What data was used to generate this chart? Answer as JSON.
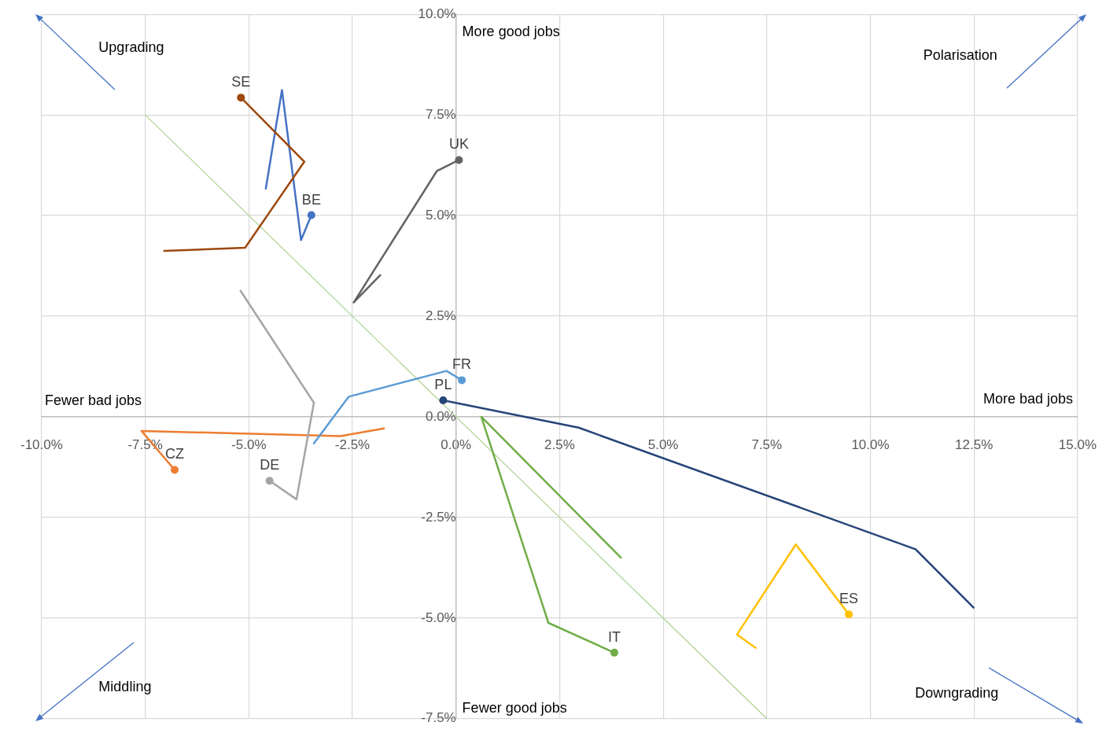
{
  "chart_data": {
    "type": "line",
    "xlim": [
      -10,
      15
    ],
    "ylim": [
      -7.5,
      10
    ],
    "xticks": [
      {
        "value": -10,
        "label": "-10.0%"
      },
      {
        "value": -7.5,
        "label": "-7.5%"
      },
      {
        "value": -5,
        "label": "-5.0%"
      },
      {
        "value": -2.5,
        "label": "-2.5%"
      },
      {
        "value": 0,
        "label": "0.0%"
      },
      {
        "value": 2.5,
        "label": "2.5%"
      },
      {
        "value": 5,
        "label": "5.0%"
      },
      {
        "value": 7.5,
        "label": "7.5%"
      },
      {
        "value": 10,
        "label": "10.0%"
      },
      {
        "value": 12.5,
        "label": "12.5%"
      },
      {
        "value": 15,
        "label": "15.0%"
      }
    ],
    "yticks": [
      {
        "value": -7.5,
        "label": "-7.5%"
      },
      {
        "value": -5,
        "label": "-5.0%"
      },
      {
        "value": -2.5,
        "label": "-2.5%"
      },
      {
        "value": 0,
        "label": "0.0%"
      },
      {
        "value": 2.5,
        "label": "2.5%"
      },
      {
        "value": 5,
        "label": "5.0%"
      },
      {
        "value": 7.5,
        "label": "7.5%"
      },
      {
        "value": 10,
        "label": "10.0%"
      }
    ],
    "grid": true,
    "legend": false,
    "line_style": "solid",
    "annotations": [
      "More good jobs",
      "Upgrading",
      "Polarisation",
      "Fewer bad jobs",
      "More bad jobs",
      "Middling",
      "Fewer good jobs",
      "Downgrading"
    ],
    "series": [
      {
        "name": "SE",
        "color": "#9e480e",
        "x": [
          -7.04,
          -5.09,
          -3.66,
          -5.19
        ],
        "values": [
          4.12,
          4.2,
          6.34,
          7.93
        ]
      },
      {
        "name": "BE",
        "color": "#4472c4",
        "x": [
          -4.59,
          -4.2,
          -3.74,
          -3.49
        ],
        "values": [
          5.67,
          8.12,
          4.39,
          5.01
        ]
      },
      {
        "name": "UK",
        "color": "#636363",
        "x": [
          -1.83,
          -2.47,
          -0.46,
          0.07
        ],
        "values": [
          3.52,
          2.84,
          6.11,
          6.38
        ]
      },
      {
        "name": "DE",
        "color": "#a5a5a5",
        "x": [
          -5.2,
          -3.43,
          -3.85,
          -4.5
        ],
        "values": [
          3.13,
          0.35,
          -2.05,
          -1.59
        ]
      },
      {
        "name": "FR",
        "color": "#5b9bd5",
        "x": [
          -3.43,
          -2.59,
          -0.23,
          0.14
        ],
        "values": [
          -0.66,
          0.5,
          1.14,
          0.91
        ]
      },
      {
        "name": "CZ",
        "color": "#ed7d31",
        "x": [
          -1.74,
          -2.79,
          -7.59,
          -6.79
        ],
        "values": [
          -0.29,
          -0.48,
          -0.35,
          -1.32
        ]
      },
      {
        "name": "PL",
        "color": "#264478",
        "x": [
          12.49,
          11.09,
          2.96,
          -0.31
        ],
        "values": [
          -4.74,
          -3.29,
          -0.27,
          0.41
        ]
      },
      {
        "name": "IT",
        "color": "#70ad47",
        "x": [
          3.98,
          0.61,
          2.23,
          3.82
        ],
        "values": [
          -3.5,
          0.0,
          -5.12,
          -5.86
        ]
      },
      {
        "name": "ES",
        "color": "#ffc000",
        "x": [
          7.23,
          6.78,
          8.2,
          9.48
        ],
        "values": [
          -5.74,
          -5.41,
          -3.17,
          -4.91
        ]
      },
      {
        "color": "#a9d18e",
        "x": [
          -7.5,
          7.5
        ],
        "values": [
          7.5,
          -7.5
        ]
      }
    ]
  }
}
